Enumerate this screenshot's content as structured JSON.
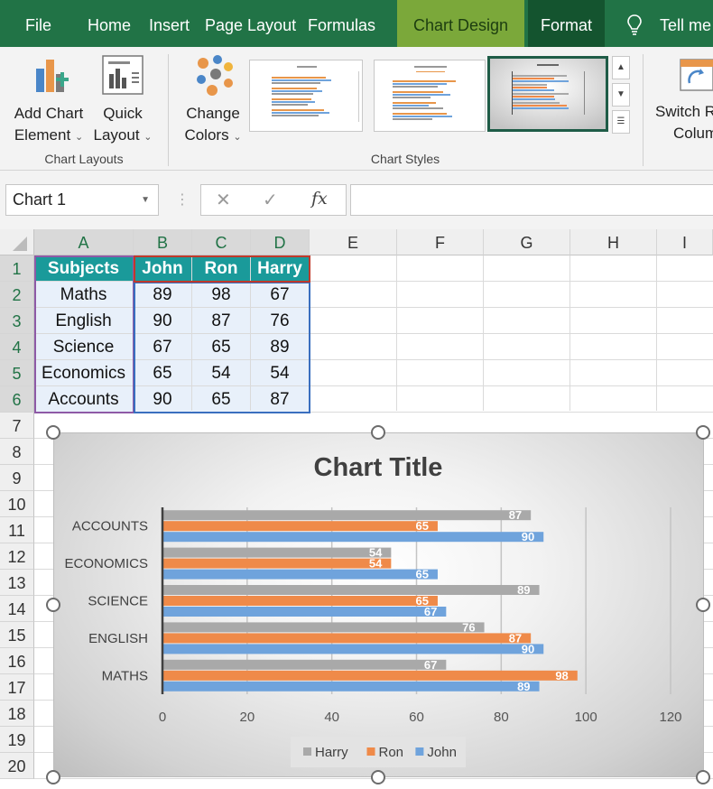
{
  "ribbon_tabs": [
    "File",
    "Home",
    "Insert",
    "Page Layout",
    "Formulas",
    "Chart Design",
    "Format",
    "Tell me"
  ],
  "ribbon": {
    "add_chart_element_line1": "Add Chart",
    "add_chart_element_line2": "Element",
    "quick_layout_line1": "Quick",
    "quick_layout_line2": "Layout",
    "change_colors_line1": "Change",
    "change_colors_line2": "Colors",
    "switch_line1": "Switch R",
    "switch_line2": "Colum",
    "group_chart_layouts": "Chart Layouts",
    "group_chart_styles": "Chart Styles"
  },
  "formula_bar": {
    "name_box": "Chart 1",
    "fx": "fx",
    "value": ""
  },
  "sheet": {
    "columns": [
      "A",
      "B",
      "C",
      "D",
      "E",
      "F",
      "G",
      "H",
      "I"
    ],
    "rows": [
      "1",
      "2",
      "3",
      "4",
      "5",
      "6",
      "7",
      "8",
      "9",
      "10",
      "11",
      "12",
      "13",
      "14",
      "15",
      "16",
      "17",
      "18",
      "19",
      "20"
    ],
    "header": [
      "Subjects",
      "John",
      "Ron",
      "Harry"
    ],
    "data": [
      [
        "Maths",
        "89",
        "98",
        "67"
      ],
      [
        "English",
        "90",
        "87",
        "76"
      ],
      [
        "Science",
        "67",
        "65",
        "89"
      ],
      [
        "Economics",
        "65",
        "54",
        "54"
      ],
      [
        "Accounts",
        "90",
        "65",
        "87"
      ]
    ]
  },
  "chart_data": {
    "type": "bar",
    "orientation": "horizontal",
    "title": "Chart Title",
    "categories": [
      "MATHS",
      "ENGLISH",
      "SCIENCE",
      "ECONOMICS",
      "ACCOUNTS"
    ],
    "series": [
      {
        "name": "John",
        "values": [
          89,
          90,
          67,
          65,
          90
        ],
        "color": "#6fa3dc"
      },
      {
        "name": "Ron",
        "values": [
          98,
          87,
          65,
          54,
          65
        ],
        "color": "#ef8a49"
      },
      {
        "name": "Harry",
        "values": [
          67,
          76,
          89,
          54,
          87
        ],
        "color": "#a9a9a9"
      }
    ],
    "xlim": [
      0,
      120
    ],
    "x_ticks": [
      0,
      20,
      40,
      60,
      80,
      100,
      120
    ],
    "data_labels": true,
    "legend_position": "bottom",
    "legend_order": [
      "Harry",
      "Ron",
      "John"
    ],
    "grid": true
  }
}
